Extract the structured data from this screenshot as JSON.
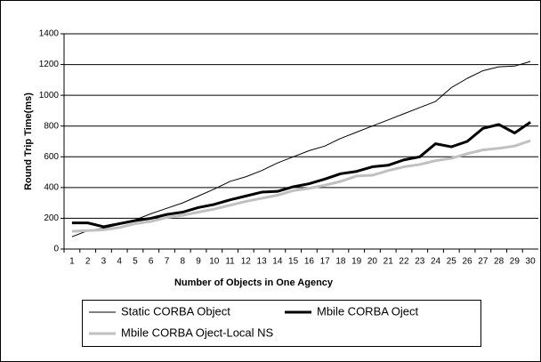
{
  "chart_data": {
    "type": "line",
    "xlabel": "Number of Objects in One Agency",
    "ylabel": "Round Trip Time(ms)",
    "categories": [
      "1",
      "2",
      "3",
      "4",
      "5",
      "6",
      "7",
      "8",
      "9",
      "10",
      "11",
      "12",
      "13",
      "14",
      "15",
      "16",
      "17",
      "18",
      "19",
      "20",
      "21",
      "22",
      "23",
      "24",
      "25",
      "26",
      "27",
      "28",
      "29",
      "30"
    ],
    "series": [
      {
        "name": "Static CORBA Object",
        "color": "#000000",
        "width": 1,
        "values": [
          80,
          120,
          135,
          160,
          190,
          230,
          265,
          300,
          345,
          390,
          440,
          470,
          510,
          560,
          600,
          640,
          670,
          720,
          760,
          800,
          840,
          880,
          920,
          960,
          1050,
          1110,
          1160,
          1185,
          1190,
          1220
        ]
      },
      {
        "name": "Mbile CORBA Oject",
        "color": "#000000",
        "width": 3,
        "values": [
          170,
          170,
          145,
          165,
          185,
          200,
          225,
          240,
          270,
          290,
          320,
          345,
          370,
          375,
          405,
          425,
          455,
          490,
          505,
          535,
          545,
          580,
          600,
          685,
          665,
          700,
          785,
          810,
          755,
          825
        ]
      },
      {
        "name": "Mbile CORBA Oject-Local NS",
        "color": "#c0c0c0",
        "width": 3,
        "values": [
          115,
          120,
          125,
          140,
          165,
          180,
          205,
          220,
          240,
          260,
          285,
          310,
          330,
          350,
          380,
          395,
          415,
          440,
          475,
          480,
          510,
          535,
          550,
          575,
          590,
          620,
          645,
          655,
          670,
          705
        ]
      }
    ],
    "ylim": [
      0,
      1400
    ],
    "yticks": [
      0,
      200,
      400,
      600,
      800,
      1000,
      1200,
      1400
    ],
    "grid": true
  }
}
